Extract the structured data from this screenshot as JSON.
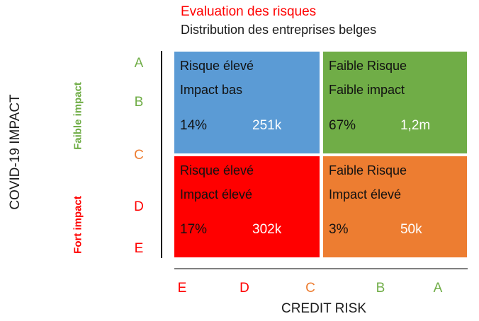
{
  "header": {
    "title": "Evaluation des risques",
    "title_color": "#ff0000",
    "subtitle": "Distribution des entreprises belges"
  },
  "y_axis": {
    "title": "COVID-19 IMPACT",
    "groups": [
      {
        "label": "Faible impact",
        "color": "#70AD47"
      },
      {
        "label": "Fort impact",
        "color": "#FF0000"
      }
    ],
    "ticks": [
      {
        "label": "A",
        "color": "#70AD47"
      },
      {
        "label": "B",
        "color": "#70AD47"
      },
      {
        "label": "C",
        "color": "#ED7D31"
      },
      {
        "label": "D",
        "color": "#FF0000"
      },
      {
        "label": "E",
        "color": "#FF0000"
      }
    ]
  },
  "x_axis": {
    "title": "CREDIT RISK",
    "ticks": [
      {
        "label": "E",
        "color": "#FF0000"
      },
      {
        "label": "D",
        "color": "#FF0000"
      },
      {
        "label": "C",
        "color": "#ED7D31"
      },
      {
        "label": "B",
        "color": "#70AD47"
      },
      {
        "label": "A",
        "color": "#70AD47"
      }
    ]
  },
  "quadrants": [
    {
      "position": "top-left",
      "line1": "Risque élevé",
      "line2": "Impact bas",
      "percent": "14%",
      "count": "251k",
      "color": "#5B9BD5"
    },
    {
      "position": "top-right",
      "line1": "Faible Risque",
      "line2": "Faible impact",
      "percent": "67%",
      "count": "1,2m",
      "color": "#70AD47"
    },
    {
      "position": "bottom-left",
      "line1": "Risque élevé",
      "line2": "Impact élevé",
      "percent": "17%",
      "count": "302k",
      "color": "#FF0000"
    },
    {
      "position": "bottom-right",
      "line1": "Faible Risque",
      "line2": "Impact élevé",
      "percent": "3%",
      "count": "50k",
      "color": "#ED7D31"
    }
  ],
  "chart_data": {
    "type": "heatmap",
    "title": "Evaluation des risques",
    "subtitle": "Distribution des entreprises belges",
    "xlabel": "CREDIT RISK",
    "ylabel": "COVID-19 IMPACT",
    "x_ticks": [
      "E",
      "D",
      "C",
      "B",
      "A"
    ],
    "y_ticks": [
      "A",
      "B",
      "C",
      "D",
      "E"
    ],
    "y_groups": [
      {
        "label": "Faible impact",
        "covers_y_ticks": [
          "A",
          "B",
          "C"
        ]
      },
      {
        "label": "Fort impact",
        "covers_y_ticks": [
          "C",
          "D",
          "E"
        ]
      }
    ],
    "cells": [
      {
        "row": "faible-impact",
        "col": "risque-eleve",
        "labels": [
          "Risque élevé",
          "Impact bas"
        ],
        "share_percent": 14,
        "company_count": "251k",
        "color": "#5B9BD5"
      },
      {
        "row": "faible-impact",
        "col": "faible-risque",
        "labels": [
          "Faible Risque",
          "Faible impact"
        ],
        "share_percent": 67,
        "company_count": "1,2m",
        "color": "#70AD47"
      },
      {
        "row": "fort-impact",
        "col": "risque-eleve",
        "labels": [
          "Risque élevé",
          "Impact élevé"
        ],
        "share_percent": 17,
        "company_count": "302k",
        "color": "#FF0000"
      },
      {
        "row": "fort-impact",
        "col": "faible-risque",
        "labels": [
          "Faible Risque",
          "Impact élevé"
        ],
        "share_percent": 3,
        "company_count": "50k",
        "color": "#ED7D31"
      }
    ],
    "legend_position": "none",
    "grid": false
  }
}
